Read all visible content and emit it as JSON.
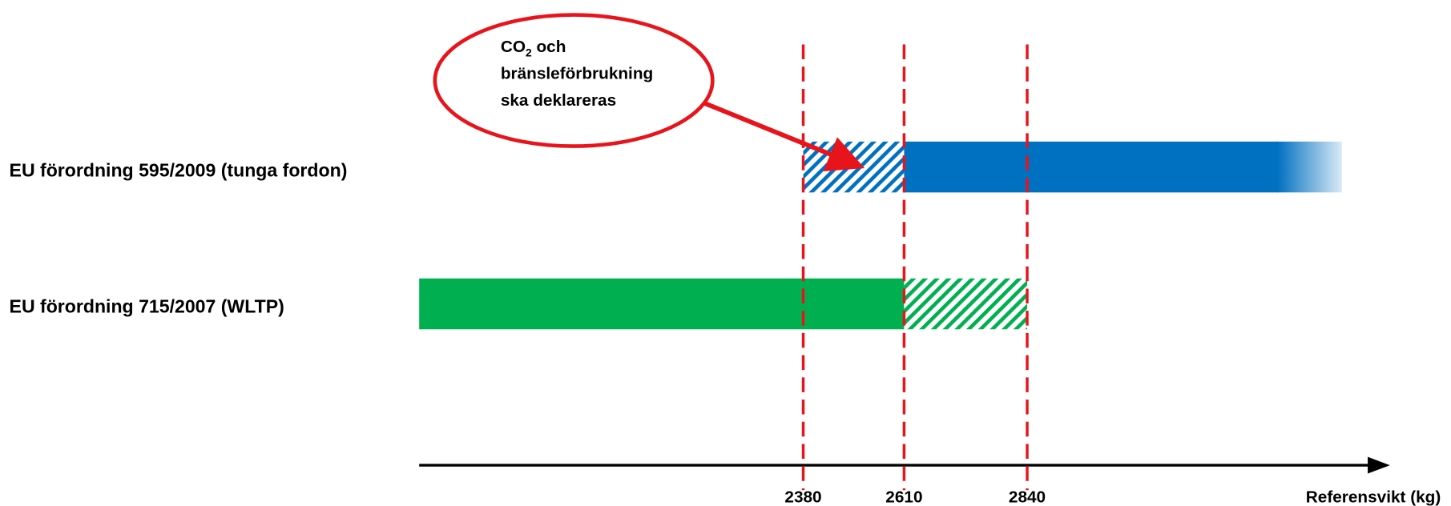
{
  "rows": [
    {
      "label": "EU förordning 595/2009 (tunga fordon)"
    },
    {
      "label": "EU förordning 715/2007 (WLTP)"
    }
  ],
  "axis": {
    "ticks": [
      "2380",
      "2610",
      "2840"
    ],
    "label": "Referensvikt (kg)"
  },
  "callout": {
    "line1": {
      "text": "CO",
      "sub": "2",
      "rest": " och"
    },
    "line2": "bränsleförbrukning",
    "line3": "ska deklareras"
  }
}
